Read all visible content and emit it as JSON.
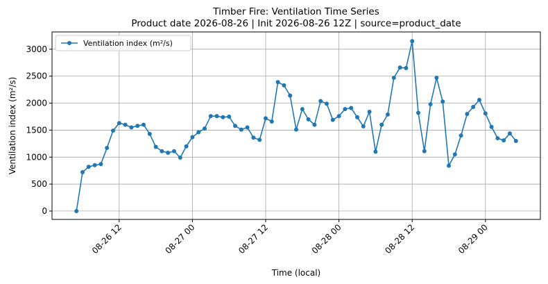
{
  "chart_data": {
    "type": "line",
    "title": "Timber Fire: Ventilation Time Series",
    "subtitle": "Product date 2026-08-26 | Init 2026-08-26 12Z | source=product_date",
    "x_label": "Time (local)",
    "y_label": "Ventilation index (m²/s)",
    "x": [
      "08-26 05",
      "08-26 06",
      "08-26 07",
      "08-26 08",
      "08-26 09",
      "08-26 10",
      "08-26 11",
      "08-26 12",
      "08-26 13",
      "08-26 14",
      "08-26 15",
      "08-26 16",
      "08-26 17",
      "08-26 18",
      "08-26 19",
      "08-26 20",
      "08-26 21",
      "08-26 22",
      "08-26 23",
      "08-27 00",
      "08-27 01",
      "08-27 02",
      "08-27 03",
      "08-27 04",
      "08-27 05",
      "08-27 06",
      "08-27 07",
      "08-27 08",
      "08-27 09",
      "08-27 10",
      "08-27 11",
      "08-27 12",
      "08-27 13",
      "08-27 14",
      "08-27 15",
      "08-27 16",
      "08-27 17",
      "08-27 18",
      "08-27 19",
      "08-27 20",
      "08-27 21",
      "08-27 22",
      "08-27 23",
      "08-28 00",
      "08-28 01",
      "08-28 02",
      "08-28 03",
      "08-28 04",
      "08-28 05",
      "08-28 06",
      "08-28 07",
      "08-28 08",
      "08-28 09",
      "08-28 10",
      "08-28 11",
      "08-28 12",
      "08-28 13",
      "08-28 14",
      "08-28 15",
      "08-28 16",
      "08-28 17",
      "08-28 18",
      "08-28 19",
      "08-28 20",
      "08-28 21",
      "08-28 22",
      "08-28 23",
      "08-29 00",
      "08-29 01",
      "08-29 02",
      "08-29 03",
      "08-29 04",
      "08-29 05"
    ],
    "series": [
      {
        "name": "Ventilation index (m²/s)",
        "color": "#1f77b4",
        "values": [
          0,
          720,
          820,
          850,
          870,
          1170,
          1490,
          1630,
          1600,
          1550,
          1580,
          1600,
          1430,
          1190,
          1110,
          1080,
          1110,
          990,
          1200,
          1370,
          1460,
          1530,
          1760,
          1760,
          1740,
          1750,
          1580,
          1510,
          1550,
          1360,
          1320,
          1720,
          1660,
          2390,
          2330,
          2140,
          1510,
          1890,
          1700,
          1600,
          2040,
          1990,
          1690,
          1760,
          1890,
          1910,
          1740,
          1570,
          1840,
          1100,
          1600,
          1790,
          2470,
          2660,
          2650,
          3150,
          1820,
          1110,
          1980,
          2470,
          2030,
          840,
          1050,
          1400,
          1800,
          1930,
          2060,
          1810,
          1560,
          1350,
          1310,
          1440,
          1300
        ]
      }
    ],
    "xlim": [
      "08-26 01",
      "08-29 09"
    ],
    "xticks": [
      "08-26 12",
      "08-27 00",
      "08-27 12",
      "08-28 00",
      "08-28 12",
      "08-29 00"
    ],
    "ylim": [
      -155,
      3320
    ],
    "yticks": [
      0,
      500,
      1000,
      1500,
      2000,
      2500,
      3000
    ],
    "grid": true,
    "legend": "upper left"
  }
}
